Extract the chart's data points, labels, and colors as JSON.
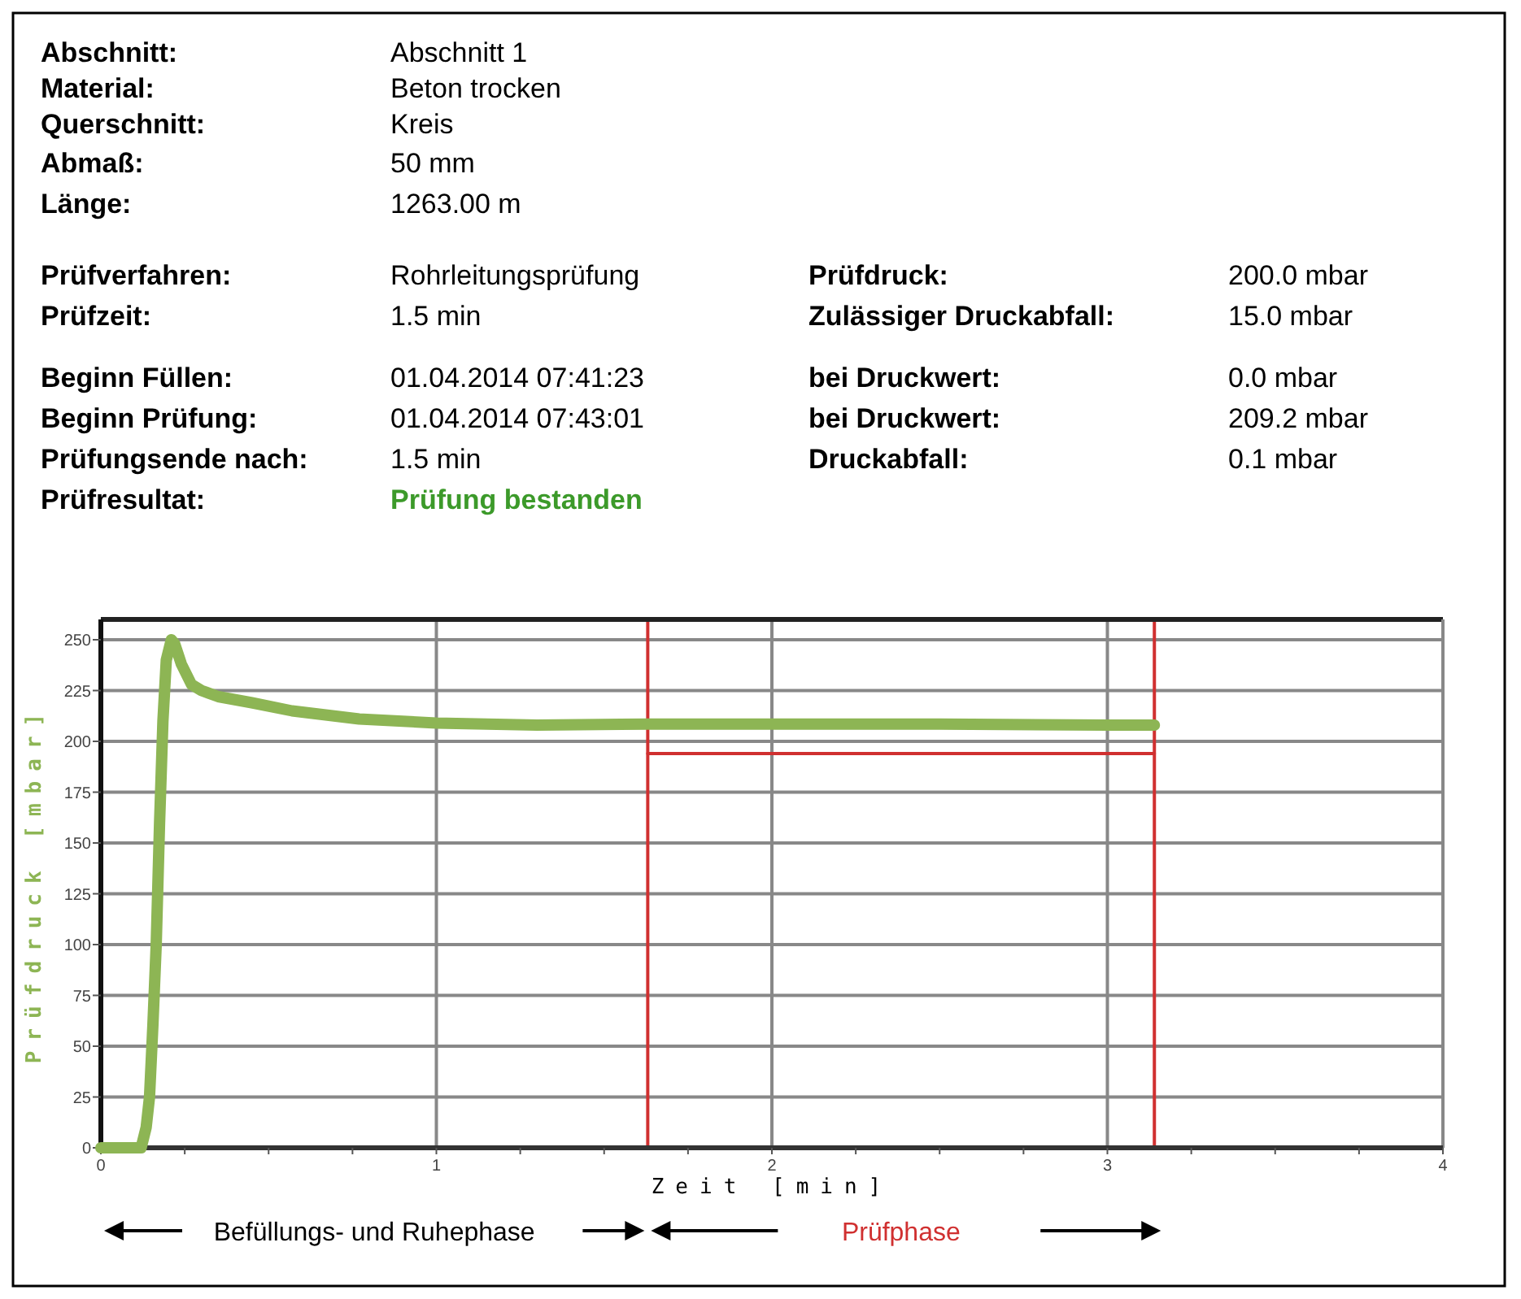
{
  "chart_data": [
    {
      "type": "other",
      "annotations": [
        "Abschnitt:",
        "Abschnitt 1",
        "Material:",
        "Beton trocken",
        "Querschnitt:",
        "Kreis",
        "Abmaß:",
        "50 mm",
        "Länge:",
        "1263.00 m",
        "Prüfverfahren:",
        "Rohrleitungsprüfung",
        "Prüfdruck:",
        "200.0 mbar",
        "Prüfzeit:",
        "1.5 min",
        "Zulässiger Druckabfall:",
        "15.0 mbar",
        "Beginn Füllen:",
        "01.04.2014 07:41:23",
        "bei Druckwert:",
        "0.0 mbar",
        "Beginn Prüfung:",
        "01.04.2014 07:43:01",
        "bei Druckwert:",
        "209.2 mbar",
        "Prüfungsende nach:",
        "1.5 min",
        "Druckabfall:",
        "0.1 mbar",
        "Prüfresultat:",
        "Prüfung bestanden"
      ]
    },
    {
      "type": "line",
      "xlabel": "Zeit [min]",
      "ylabel": "Prüfdruck [mbar]",
      "xlim": [
        0,
        4
      ],
      "ylim": [
        0,
        260
      ],
      "xticks": [
        0,
        {
          "value": 0.25,
          "label": null
        },
        {
          "value": 0.5,
          "label": null
        },
        {
          "value": 0.75,
          "label": null
        },
        1,
        {
          "value": 1.25,
          "label": null
        },
        {
          "value": 1.5,
          "label": null
        },
        {
          "value": 1.75,
          "label": null
        },
        2,
        {
          "value": 2.25,
          "label": null
        },
        {
          "value": 2.5,
          "label": null
        },
        {
          "value": 2.75,
          "label": null
        },
        3,
        {
          "value": 3.25,
          "label": null
        },
        {
          "value": 3.5,
          "label": null
        },
        {
          "value": 3.75,
          "label": null
        },
        4
      ],
      "yticks": [
        0,
        25,
        50,
        75,
        100,
        125,
        150,
        175,
        200,
        225,
        250
      ],
      "grid": true,
      "series": [
        {
          "color": "#8db554",
          "x": [
            0,
            0.1,
            0.12,
            0.135,
            0.145,
            0.155,
            0.165,
            0.175,
            0.185,
            0.195,
            0.21,
            0.22,
            0.24,
            0.27,
            0.3,
            0.35,
            0.45,
            0.57,
            0.77,
            1.0,
            1.3,
            1.63,
            2.0,
            2.5,
            3.0,
            3.14
          ],
          "values": [
            0,
            0,
            0,
            10,
            25,
            60,
            100,
            160,
            210,
            240,
            250,
            248,
            238,
            228,
            225,
            222,
            219,
            215,
            211,
            209,
            208,
            208.5,
            208.5,
            208.5,
            208,
            208
          ]
        },
        {
          "color": "#d03030",
          "x": [
            1.63,
            3.14
          ],
          "values": [
            194,
            194
          ]
        }
      ],
      "ref_lines": [
        {
          "axis": "x",
          "value": 1.63,
          "color": "#d03030"
        },
        {
          "axis": "x",
          "value": 3.14,
          "color": "#d03030"
        }
      ],
      "annotations": [
        "Befüllungs- und Ruhephase",
        "Prüfphase"
      ]
    }
  ]
}
